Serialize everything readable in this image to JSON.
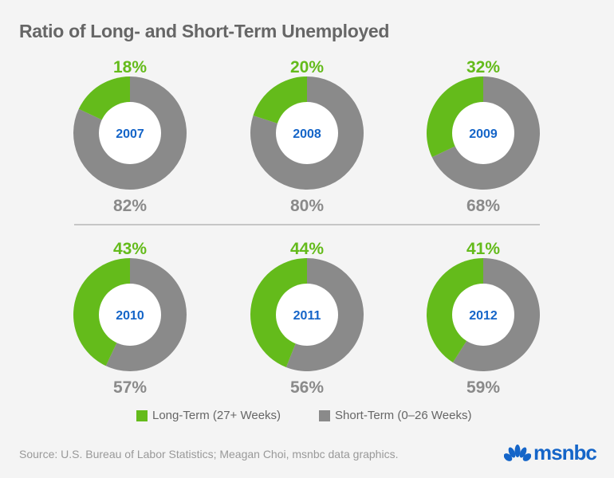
{
  "chart_data": {
    "type": "pie",
    "title": "Ratio of Long- and Short-Term Unemployed",
    "variant": "donut",
    "years": [
      "2007",
      "2008",
      "2009",
      "2010",
      "2011",
      "2012"
    ],
    "series": [
      {
        "name": "Long-Term (27+ Weeks)",
        "values": [
          18,
          20,
          32,
          43,
          44,
          41
        ],
        "color": "#64bb1b"
      },
      {
        "name": "Short-Term (0–26 Weeks)",
        "values": [
          82,
          80,
          68,
          57,
          56,
          59
        ],
        "color": "#8a8a8a"
      }
    ],
    "year_label_color": "#1565c8",
    "legend": "bottom-center"
  },
  "source": "Source: U.S. Bureau of Labor Statistics; Meagan Choi, msnbc data graphics.",
  "logo": {
    "text": "msnbc",
    "color": "#1565c8"
  }
}
